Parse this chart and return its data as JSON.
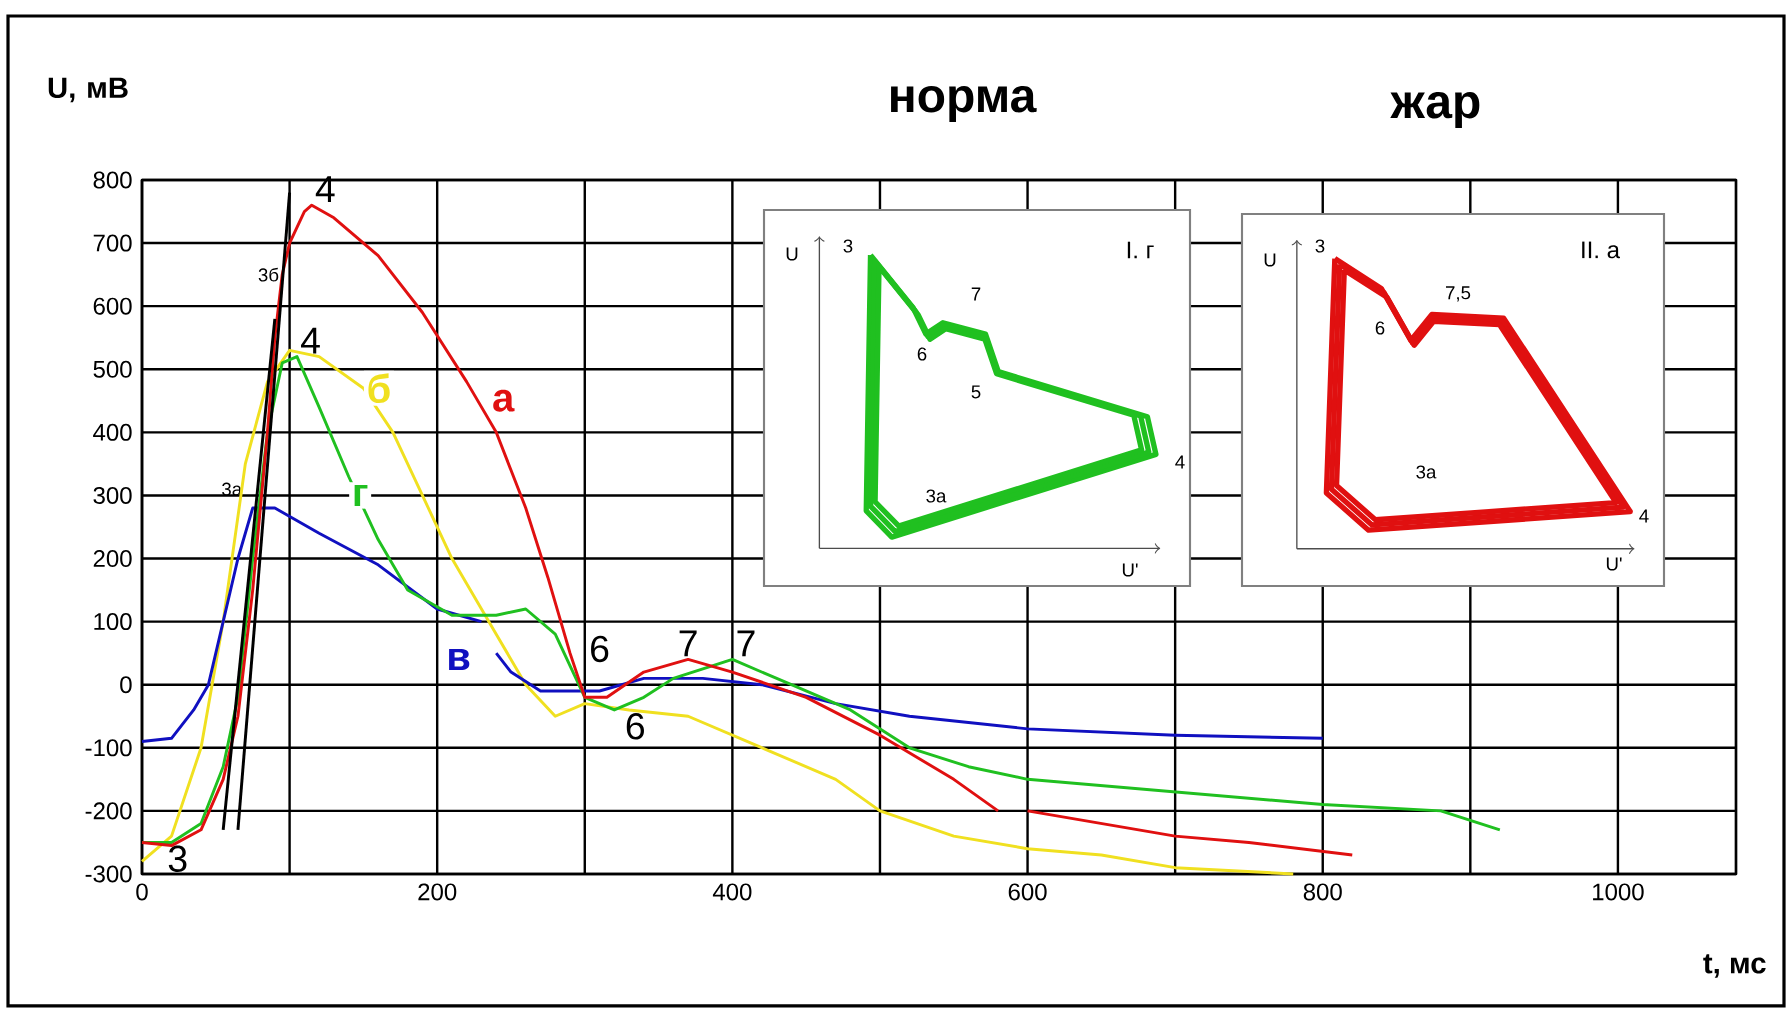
{
  "chart_data": {
    "type": "line",
    "xlabel": "t, мс",
    "ylabel": "U, мВ",
    "xlim": [
      0,
      1080
    ],
    "ylim": [
      -300,
      800
    ],
    "xticks": [
      0,
      {
        "value": 100,
        "label": null
      },
      200,
      {
        "value": 300,
        "label": null
      },
      400,
      {
        "value": 500,
        "label": null
      },
      600,
      {
        "value": 700,
        "label": null
      },
      800,
      {
        "value": 900,
        "label": null
      },
      1000
    ],
    "yticks": [
      -300,
      -200,
      -100,
      0,
      100,
      200,
      300,
      400,
      500,
      600,
      700,
      800
    ],
    "grid": true,
    "legend": false,
    "marker": "none",
    "line_style": "solid",
    "series": [
      {
        "name": "б",
        "color": "#f0e020",
        "x": [
          0,
          20,
          40,
          55,
          70,
          85,
          100,
          120,
          150,
          170,
          190,
          210,
          240,
          260,
          280,
          300,
          330,
          370,
          420,
          470,
          500,
          550,
          600,
          650,
          700,
          780
        ],
        "values": [
          -280,
          -240,
          -100,
          100,
          350,
          480,
          530,
          520,
          470,
          400,
          300,
          200,
          80,
          0,
          -50,
          -30,
          -40,
          -50,
          -100,
          -150,
          -200,
          -240,
          -260,
          -270,
          -290,
          -300
        ]
      },
      {
        "name": "в",
        "color": "#1010c0",
        "x": [
          0,
          20,
          35,
          45,
          55,
          65,
          75,
          90,
          120,
          160,
          200,
          230,
          235,
          240,
          250,
          270,
          290,
          310,
          340,
          380,
          420,
          470,
          520,
          560,
          600,
          700,
          800
        ],
        "values": [
          -90,
          -85,
          -40,
          0,
          100,
          200,
          280,
          280,
          240,
          190,
          120,
          100,
          null,
          50,
          20,
          -10,
          -10,
          -10,
          10,
          10,
          0,
          -30,
          -50,
          -60,
          -70,
          -80,
          -85
        ]
      },
      {
        "name": "г",
        "color": "#20c020",
        "x": [
          0,
          20,
          40,
          55,
          65,
          75,
          85,
          95,
          105,
          120,
          140,
          160,
          180,
          210,
          240,
          260,
          280,
          300,
          320,
          340,
          360,
          400,
          440,
          480,
          520,
          560,
          600,
          700,
          800,
          880,
          920
        ],
        "values": [
          -250,
          -250,
          -220,
          -130,
          -20,
          200,
          400,
          510,
          520,
          440,
          330,
          230,
          150,
          110,
          110,
          120,
          80,
          -20,
          -40,
          -20,
          10,
          40,
          0,
          -40,
          -100,
          -130,
          -150,
          -170,
          -190,
          -200,
          -230
        ]
      },
      {
        "name": "а",
        "color": "#e01010",
        "x": [
          0,
          20,
          40,
          55,
          65,
          75,
          85,
          90,
          95,
          100,
          110,
          115,
          130,
          160,
          190,
          220,
          240,
          260,
          275,
          290,
          300,
          315,
          340,
          370,
          400,
          450,
          500,
          550,
          580,
          590,
          600,
          650,
          700,
          750,
          820
        ],
        "values": [
          -250,
          -255,
          -230,
          -150,
          -50,
          150,
          400,
          550,
          650,
          700,
          750,
          760,
          740,
          680,
          590,
          480,
          400,
          280,
          170,
          50,
          -20,
          -20,
          20,
          40,
          20,
          -20,
          -80,
          -150,
          -200,
          null,
          -200,
          -220,
          -240,
          -250,
          -270
        ]
      },
      {
        "color": "#000000",
        "x": [
          55,
          90
        ],
        "values": [
          -230,
          580
        ]
      },
      {
        "color": "#000000",
        "x": [
          65,
          100
        ],
        "values": [
          -230,
          780
        ]
      }
    ],
    "annotations": [
      {
        "text": "4",
        "x": 115,
        "y": 760
      },
      {
        "text": "3б",
        "x": 95,
        "y": 650
      },
      {
        "text": "4",
        "x": 105,
        "y": 520
      },
      {
        "text": "3а",
        "x": 70,
        "y": 310
      },
      {
        "text": "3",
        "x": 15,
        "y": -250
      },
      {
        "text": "6",
        "x": 310,
        "y": -20
      },
      {
        "text": "6",
        "x": 325,
        "y": -40
      },
      {
        "text": "7",
        "x": 370,
        "y": 40
      },
      {
        "text": "7",
        "x": 400,
        "y": 40
      },
      "норма",
      "жар",
      "I. г",
      "II. а",
      "U",
      "3",
      "7",
      "6",
      "5",
      "3а",
      "4",
      "U'",
      "U",
      "3",
      "7,5",
      "6",
      "3а",
      "4",
      "U'"
    ]
  }
}
